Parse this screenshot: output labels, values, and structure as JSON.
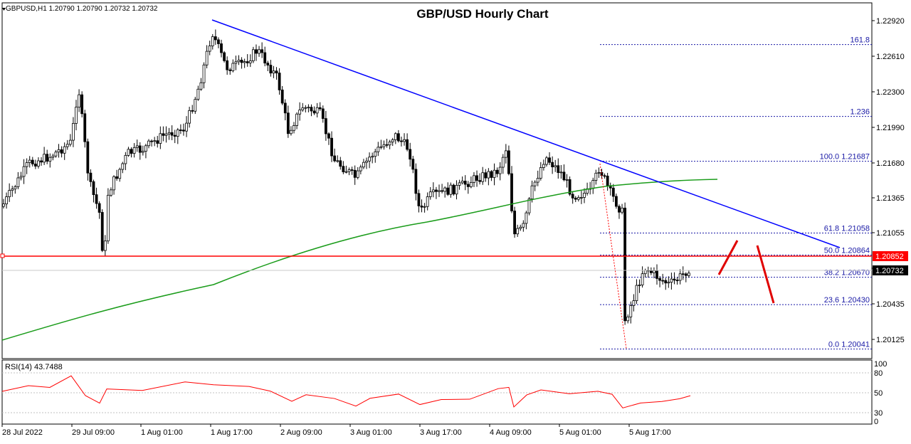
{
  "header": {
    "symbol_info": "GBPUSD,H1  1.20790 1.20790 1.20732 1.20732",
    "title": "GBP/USD Hourly Chart"
  },
  "price_axis": {
    "ticks": [
      "1.22920",
      "1.22610",
      "1.22300",
      "1.21990",
      "1.21680",
      "1.21365",
      "1.21055",
      "1.20745",
      "1.20435",
      "1.20125"
    ],
    "current_price_label": "1.20852",
    "last_price_label": "1.20732"
  },
  "rsi": {
    "label": "RSI(14) 43.7488",
    "ticks": [
      "100",
      "80",
      "50",
      "30",
      "20",
      "0"
    ]
  },
  "time_axis": {
    "labels": [
      "28 Jul 2022",
      "29 Jul 09:00",
      "1 Aug 01:00",
      "1 Aug 17:00",
      "2 Aug 09:00",
      "3 Aug 01:00",
      "3 Aug 17:00",
      "4 Aug 09:00",
      "5 Aug 01:00",
      "5 Aug 17:00"
    ]
  },
  "fibonacci": [
    {
      "label": "161.8",
      "price": 1.2271
    },
    {
      "label": "1.236",
      "price": 1.2208
    },
    {
      "label": "100.0 1.21687",
      "price": 1.21687
    },
    {
      "label": "61.8 1.21058",
      "price": 1.21058
    },
    {
      "label": "50.0 1.20864",
      "price": 1.20864
    },
    {
      "label": "38.2 1.20670",
      "price": 1.2067
    },
    {
      "label": "23.6 1.20430",
      "price": 1.2043
    },
    {
      "label": "0.0 1.20041",
      "price": 1.20041
    }
  ],
  "colors": {
    "candle": "#000000",
    "trendline": "#0000ff",
    "moving_average": "#1a9c1a",
    "horizontal_level": "#ff0000",
    "fibonacci": "#1a1aa6",
    "rsi_line": "#ff0000",
    "forecast_arrows": "#e00000",
    "current_price_box": "#ff0000"
  },
  "chart_data": {
    "type": "line",
    "title": "GBP/USD Hourly Chart",
    "xlabel": "",
    "ylabel": "",
    "ylim": [
      1.1999,
      1.2306
    ],
    "x": [
      "28 Jul 2022",
      "29 Jul 09:00",
      "1 Aug 01:00",
      "1 Aug 17:00",
      "2 Aug 09:00",
      "3 Aug 01:00",
      "3 Aug 17:00",
      "4 Aug 09:00",
      "5 Aug 01:00",
      "5 Aug 17:00"
    ],
    "series": [
      {
        "name": "",
        "values": [
          1.2135,
          1.2175,
          1.2185,
          1.228,
          1.2215,
          1.2185,
          1.214,
          1.215,
          1.213,
          1.2075
        ]
      }
    ],
    "horizontal_level": 1.20852,
    "last_price": 1.20732,
    "rsi": {
      "period": 14,
      "value": 43.7488,
      "ylim": [
        0,
        100
      ],
      "levels": [
        80,
        50,
        30,
        20
      ]
    },
    "grid": false
  }
}
